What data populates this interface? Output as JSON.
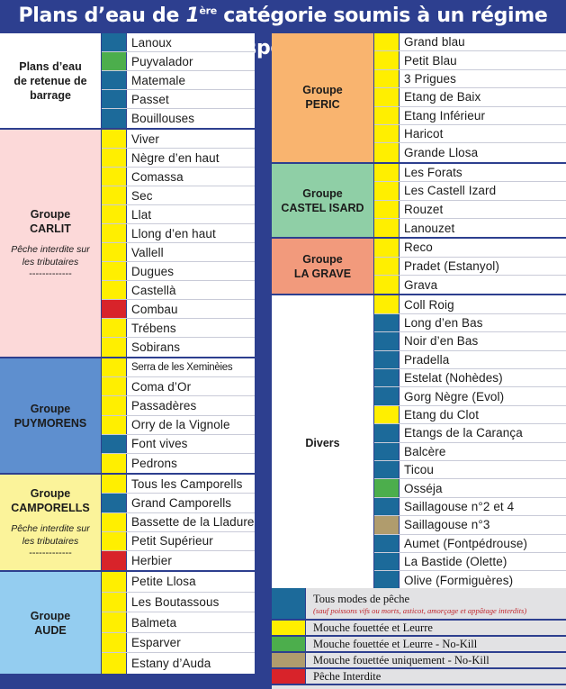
{
  "title": {
    "pre": "Plans d’eau de ",
    "num": "1",
    "sup": "ère",
    "post": " catégorie soumis à un régime spécial"
  },
  "colors": {
    "tous_modes": "#1c6a9a",
    "mouche_leurre": "#ffef00",
    "mouche_leurre_nokill": "#4cae4c",
    "mouche_nokill": "#b09c6d",
    "interdite": "#d8232a"
  },
  "left_groups": [
    {
      "label_lines": [
        "Plans d’eau",
        "de retenue de",
        "barrage"
      ],
      "bg": "#ffffff",
      "row_h": 21,
      "items": [
        {
          "name": "Lanoux",
          "mode": "tous_modes"
        },
        {
          "name": "Puyvalador",
          "mode": "mouche_leurre_nokill"
        },
        {
          "name": "Matemale",
          "mode": "tous_modes"
        },
        {
          "name": "Passet",
          "mode": "tous_modes"
        },
        {
          "name": "Bouillouses",
          "mode": "tous_modes"
        }
      ]
    },
    {
      "label_lines": [
        "Groupe",
        "CARLIT"
      ],
      "note_lines": [
        "Pêche interdite sur",
        "les tributaires"
      ],
      "dash": "-------------",
      "bg": "#fcd9d9",
      "row_h": 21,
      "items": [
        {
          "name": "Viver",
          "mode": "mouche_leurre"
        },
        {
          "name": "Nègre d’en haut",
          "mode": "mouche_leurre"
        },
        {
          "name": "Comassa",
          "mode": "mouche_leurre"
        },
        {
          "name": "Sec",
          "mode": "mouche_leurre"
        },
        {
          "name": "Llat",
          "mode": "mouche_leurre"
        },
        {
          "name": "Llong d’en haut",
          "mode": "mouche_leurre"
        },
        {
          "name": "Vallell",
          "mode": "mouche_leurre"
        },
        {
          "name": "Dugues",
          "mode": "mouche_leurre"
        },
        {
          "name": "Castellà",
          "mode": "mouche_leurre"
        },
        {
          "name": "Combau",
          "mode": "interdite"
        },
        {
          "name": "Trébens",
          "mode": "mouche_leurre"
        },
        {
          "name": "Sobirans",
          "mode": "mouche_leurre"
        }
      ]
    },
    {
      "label_lines": [
        "Groupe",
        "PUYMORENS"
      ],
      "bg": "#5e8fcf",
      "row_h": 21.2,
      "items": [
        {
          "name": "Serra de les Xeminèies",
          "mode": "mouche_leurre",
          "narrow": true
        },
        {
          "name": "Coma d’Or",
          "mode": "mouche_leurre"
        },
        {
          "name": "Passadères",
          "mode": "mouche_leurre"
        },
        {
          "name": "Orry de la Vignole",
          "mode": "mouche_leurre"
        },
        {
          "name": "Font vives",
          "mode": "tous_modes"
        },
        {
          "name": "Pedrons",
          "mode": "mouche_leurre"
        }
      ]
    },
    {
      "label_lines": [
        "Groupe",
        "CAMPORELLS"
      ],
      "note_lines": [
        "Pêche interdite sur",
        "les tributaires"
      ],
      "dash": "-------------",
      "bg": "#fbf39a",
      "row_h": 21.2,
      "items": [
        {
          "name": "Tous les Camporells",
          "mode": "mouche_leurre"
        },
        {
          "name": "Grand Camporells",
          "mode": "tous_modes"
        },
        {
          "name": "Bassette de la Lladure",
          "mode": "mouche_leurre"
        },
        {
          "name": "Petit Supérieur",
          "mode": "mouche_leurre"
        },
        {
          "name": "Herbier",
          "mode": "interdite"
        }
      ]
    },
    {
      "label_lines": [
        "Groupe",
        "AUDE"
      ],
      "bg": "#94cdf0",
      "row_h": 22.6,
      "items": [
        {
          "name": "Petite Llosa",
          "mode": "mouche_leurre"
        },
        {
          "name": "Les Boutassous",
          "mode": "mouche_leurre"
        },
        {
          "name": "Balmeta",
          "mode": "mouche_leurre"
        },
        {
          "name": "Esparver",
          "mode": "mouche_leurre"
        },
        {
          "name": "Estany d’Auda",
          "mode": "mouche_leurre"
        }
      ]
    }
  ],
  "right_groups": [
    {
      "label_lines": [
        "Groupe",
        "PERIC"
      ],
      "bg": "#f9b46f",
      "row_h": 20.4,
      "items": [
        {
          "name": "Grand blau",
          "mode": "mouche_leurre"
        },
        {
          "name": "Petit Blau",
          "mode": "mouche_leurre"
        },
        {
          "name": "3 Prigues",
          "mode": "mouche_leurre"
        },
        {
          "name": "Etang de Baix",
          "mode": "mouche_leurre"
        },
        {
          "name": "Etang Inférieur",
          "mode": "mouche_leurre"
        },
        {
          "name": "Haricot",
          "mode": "mouche_leurre"
        },
        {
          "name": "Grande Llosa",
          "mode": "mouche_leurre"
        }
      ]
    },
    {
      "label_lines": [
        "Groupe",
        "CASTEL ISARD"
      ],
      "bg": "#8fcfa6",
      "row_h": 20.4,
      "items": [
        {
          "name": "Les Forats",
          "mode": "mouche_leurre"
        },
        {
          "name": "Les Castell Izard",
          "mode": "mouche_leurre"
        },
        {
          "name": "Rouzet",
          "mode": "mouche_leurre"
        },
        {
          "name": "Lanouzet",
          "mode": "mouche_leurre"
        }
      ]
    },
    {
      "label_lines": [
        "Groupe",
        "LA GRAVE"
      ],
      "bg": "#f29a7c",
      "row_h": 20.4,
      "items": [
        {
          "name": "Reco",
          "mode": "mouche_leurre"
        },
        {
          "name": "Pradet (Estanyol)",
          "mode": "mouche_leurre"
        },
        {
          "name": "Grava",
          "mode": "mouche_leurre"
        }
      ]
    },
    {
      "label_lines": [
        "Divers"
      ],
      "bg": "#ffffff",
      "row_h": 20.4,
      "items": [
        {
          "name": "Coll Roig",
          "mode": "mouche_leurre"
        },
        {
          "name": "Long d’en Bas",
          "mode": "tous_modes"
        },
        {
          "name": "Noir d’en Bas",
          "mode": "tous_modes"
        },
        {
          "name": "Pradella",
          "mode": "tous_modes"
        },
        {
          "name": "Estelat (Nohèdes)",
          "mode": "tous_modes"
        },
        {
          "name": "Gorg Nègre (Evol)",
          "mode": "tous_modes"
        },
        {
          "name": "Etang du Clot",
          "mode": "mouche_leurre"
        },
        {
          "name": "Etangs de la Carança",
          "mode": "tous_modes"
        },
        {
          "name": "Balcère",
          "mode": "tous_modes"
        },
        {
          "name": "Ticou",
          "mode": "tous_modes"
        },
        {
          "name": "Osséja",
          "mode": "mouche_leurre_nokill"
        },
        {
          "name": "Saillagouse n°2 et 4",
          "mode": "tous_modes"
        },
        {
          "name": "Saillagouse n°3",
          "mode": "mouche_nokill"
        },
        {
          "name": "Aumet (Fontpédrouse)",
          "mode": "tous_modes"
        },
        {
          "name": "La Bastide (Olette)",
          "mode": "tous_modes"
        },
        {
          "name": "Olive (Formiguères)",
          "mode": "tous_modes"
        }
      ]
    }
  ],
  "legend": [
    {
      "mode": "tous_modes",
      "text": "Tous modes de pêche",
      "sub": "(sauf poissons vifs ou morts, asticot, amorçage et appâtage interdits)"
    },
    {
      "mode": "mouche_leurre",
      "text": "Mouche fouettée et Leurre"
    },
    {
      "mode": "mouche_leurre_nokill",
      "text": "Mouche fouettée et Leurre - No-Kill"
    },
    {
      "mode": "mouche_nokill",
      "text": "Mouche fouettée uniquement - No-Kill"
    },
    {
      "mode": "interdite",
      "text": "Pêche Interdite"
    }
  ]
}
